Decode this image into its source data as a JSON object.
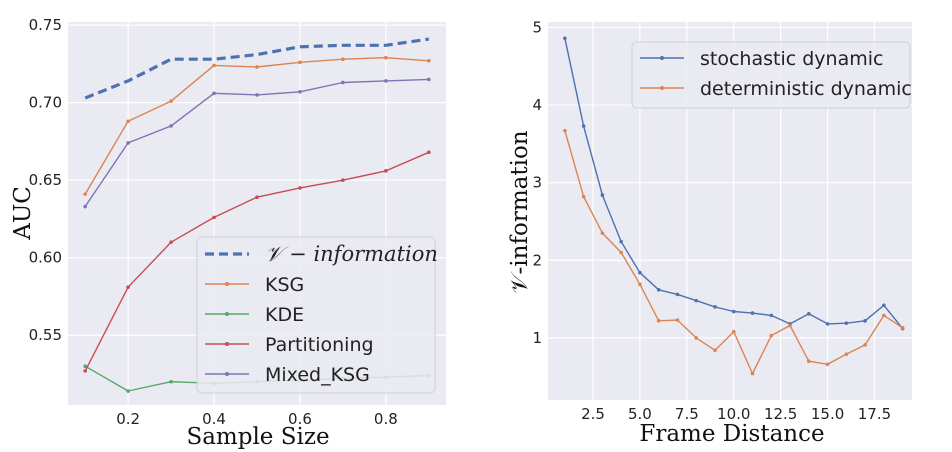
{
  "chart_data": [
    {
      "type": "line",
      "xlabel": "Sample Size",
      "ylabel": "AUC",
      "xlim": [
        0.06,
        0.94
      ],
      "ylim": [
        0.505,
        0.752
      ],
      "xticks": [
        0.2,
        0.4,
        0.6,
        0.8
      ],
      "xtick_labels": [
        "0.2",
        "0.4",
        "0.6",
        "0.8"
      ],
      "yticks": [
        0.55,
        0.6,
        0.65,
        0.7,
        0.75
      ],
      "ytick_labels": [
        "0.55",
        "0.60",
        "0.65",
        "0.70",
        "0.75"
      ],
      "grid": true,
      "legend_position": "lower-right",
      "x": [
        0.1,
        0.2,
        0.3,
        0.4,
        0.5,
        0.6,
        0.7,
        0.8,
        0.9
      ],
      "series": [
        {
          "name": "𝒱 − information",
          "style": "dashed",
          "color": "#4C72B0",
          "values": [
            0.703,
            0.714,
            0.728,
            0.728,
            0.731,
            0.736,
            0.737,
            0.737,
            0.741
          ]
        },
        {
          "name": "KSG",
          "style": "solid",
          "color": "#DD8452",
          "values": [
            0.641,
            0.688,
            0.701,
            0.724,
            0.723,
            0.726,
            0.728,
            0.729,
            0.727
          ]
        },
        {
          "name": "KDE",
          "style": "solid",
          "color": "#55A868",
          "values": [
            0.53,
            0.514,
            0.52,
            0.519,
            0.52,
            0.521,
            0.522,
            0.523,
            0.524
          ]
        },
        {
          "name": "Partitioning",
          "style": "solid",
          "color": "#C44E52",
          "values": [
            0.527,
            0.581,
            0.61,
            0.626,
            0.639,
            0.645,
            0.65,
            0.656,
            0.668
          ]
        },
        {
          "name": "Mixed_KSG",
          "style": "solid",
          "color": "#8172B3",
          "values": [
            0.633,
            0.674,
            0.685,
            0.706,
            0.705,
            0.707,
            0.713,
            0.714,
            0.715
          ]
        }
      ]
    },
    {
      "type": "line",
      "xlabel": "Frame Distance",
      "ylabel": "𝒱-information",
      "xlim": [
        0.1,
        19.5
      ],
      "ylim": [
        0.2,
        5.07
      ],
      "xticks": [
        2.5,
        5,
        7.5,
        10,
        12.5,
        15,
        17.5
      ],
      "xtick_labels": [
        "2.5",
        "5.0",
        "7.5",
        "10.0",
        "12.5",
        "15.0",
        "17.5"
      ],
      "yticks": [
        1,
        2,
        3,
        4,
        5
      ],
      "ytick_labels": [
        "1",
        "2",
        "3",
        "4",
        "5"
      ],
      "grid": true,
      "legend_position": "top-right",
      "x": [
        1,
        2,
        3,
        4,
        5,
        6,
        7,
        8,
        9,
        10,
        11,
        12,
        13,
        14,
        15,
        16,
        17,
        18,
        19
      ],
      "series": [
        {
          "name": "stochastic dynamic",
          "style": "solid",
          "color": "#4C72B0",
          "values": [
            4.86,
            3.73,
            2.84,
            2.24,
            1.84,
            1.62,
            1.56,
            1.48,
            1.4,
            1.34,
            1.32,
            1.29,
            1.18,
            1.31,
            1.18,
            1.19,
            1.22,
            1.42,
            1.12
          ]
        },
        {
          "name": "deterministic dynamic",
          "style": "solid",
          "color": "#DD8452",
          "values": [
            3.67,
            2.82,
            2.35,
            2.1,
            1.69,
            1.22,
            1.23,
            1.0,
            0.84,
            1.08,
            0.54,
            1.03,
            1.16,
            0.7,
            0.66,
            0.79,
            0.91,
            1.29,
            1.13
          ]
        }
      ]
    }
  ]
}
